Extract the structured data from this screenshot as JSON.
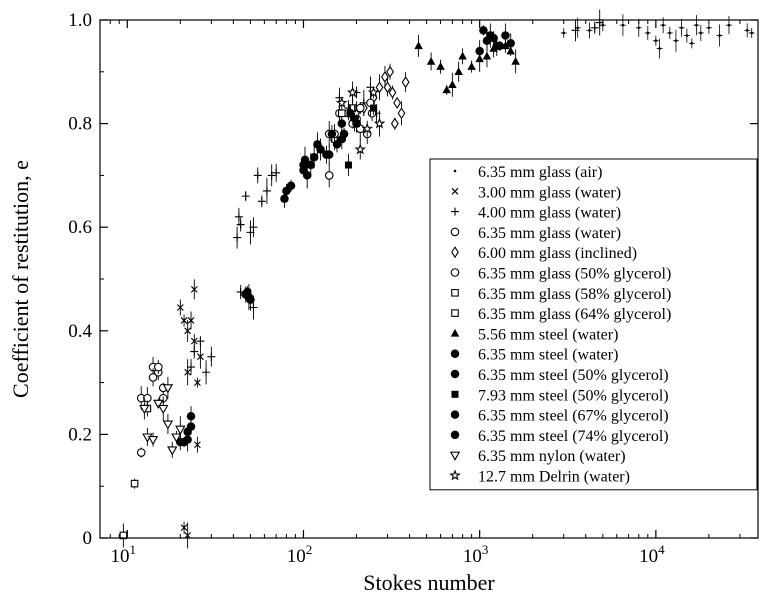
{
  "chart_data": {
    "type": "scatter",
    "title": "",
    "xlabel": "Stokes number",
    "ylabel": "Coefficient of restitution, e",
    "xscale": "log",
    "xlim": [
      7,
      38000
    ],
    "ylim": [
      0,
      1.0
    ],
    "yticks": [
      0,
      0.2,
      0.4,
      0.6,
      0.8,
      1.0
    ],
    "ytick_labels": [
      "0",
      "0.2",
      "0.4",
      "0.6",
      "0.8",
      "1.0"
    ],
    "xticks": [
      10,
      100,
      1000,
      10000
    ],
    "xtick_bases": [
      "10",
      "10",
      "10",
      "10"
    ],
    "xtick_exps": [
      "1",
      "2",
      "3",
      "4"
    ],
    "grid": false,
    "legend_position": "right",
    "series": [
      {
        "name": "6.35 mm glass (air)",
        "marker": "dot",
        "points": [
          [
            3000,
            0.975
          ],
          [
            3600,
            0.985
          ],
          [
            4200,
            0.98
          ],
          [
            5000,
            0.99
          ],
          [
            6500,
            0.99
          ],
          [
            8000,
            0.985
          ],
          [
            9000,
            0.975
          ],
          [
            10000,
            0.96
          ],
          [
            10500,
            0.945
          ],
          [
            11000,
            0.99
          ],
          [
            12000,
            0.975
          ],
          [
            13000,
            0.96
          ],
          [
            14000,
            0.985
          ],
          [
            15000,
            0.97
          ],
          [
            16000,
            0.955
          ],
          [
            17000,
            0.99
          ],
          [
            18000,
            0.975
          ],
          [
            20000,
            0.985
          ],
          [
            23000,
            0.97
          ],
          [
            26000,
            0.99
          ],
          [
            33000,
            0.98
          ],
          [
            35000,
            0.975
          ]
        ]
      },
      {
        "name": "3.00 mm glass (water)",
        "marker": "x",
        "points": [
          [
            20,
            0.445
          ],
          [
            21,
            0.42
          ],
          [
            22,
            0.32
          ],
          [
            22,
            0.4
          ],
          [
            23,
            0.42
          ],
          [
            24,
            0.38
          ],
          [
            25,
            0.3
          ],
          [
            26,
            0.35
          ],
          [
            24,
            0.48
          ],
          [
            25,
            0.18
          ],
          [
            21,
            0.02
          ],
          [
            22,
            0.005
          ]
        ]
      },
      {
        "name": "4.00 mm glass (water)",
        "marker": "plus",
        "points": [
          [
            42,
            0.58
          ],
          [
            43,
            0.62
          ],
          [
            44,
            0.605
          ],
          [
            47,
            0.66
          ],
          [
            50,
            0.59
          ],
          [
            52,
            0.6
          ],
          [
            55,
            0.7
          ],
          [
            58,
            0.65
          ],
          [
            62,
            0.67
          ],
          [
            66,
            0.7
          ],
          [
            70,
            0.705
          ],
          [
            44,
            0.475
          ],
          [
            48,
            0.465
          ],
          [
            52,
            0.445
          ],
          [
            160,
            0.85
          ],
          [
            180,
            0.83
          ],
          [
            200,
            0.86
          ],
          [
            220,
            0.84
          ],
          [
            240,
            0.87
          ],
          [
            260,
            0.82
          ],
          [
            24,
            0.36
          ],
          [
            26,
            0.38
          ],
          [
            28,
            0.32
          ],
          [
            30,
            0.35
          ],
          [
            23,
            0.33
          ],
          [
            4500,
            0.985
          ],
          [
            4800,
            0.995
          ],
          [
            3500,
            0.98
          ]
        ]
      },
      {
        "name": "6.35 mm glass (water)",
        "marker": "circle",
        "points": [
          [
            12,
            0.165
          ],
          [
            12,
            0.27
          ],
          [
            14,
            0.33
          ],
          [
            15,
            0.32
          ],
          [
            16,
            0.27
          ],
          [
            140,
            0.78
          ],
          [
            150,
            0.77
          ],
          [
            160,
            0.82
          ],
          [
            180,
            0.82
          ],
          [
            190,
            0.8
          ],
          [
            210,
            0.79
          ],
          [
            230,
            0.78
          ],
          [
            245,
            0.82
          ]
        ]
      },
      {
        "name": "6.00 mm glass (inclined)",
        "marker": "diamond",
        "points": [
          [
            220,
            0.83
          ],
          [
            250,
            0.85
          ],
          [
            270,
            0.87
          ],
          [
            290,
            0.89
          ],
          [
            300,
            0.87
          ],
          [
            320,
            0.86
          ],
          [
            340,
            0.84
          ],
          [
            360,
            0.82
          ],
          [
            380,
            0.88
          ],
          [
            310,
            0.9
          ],
          [
            330,
            0.8
          ]
        ]
      },
      {
        "name": "6.35 mm glass (50% glycerol)",
        "marker": "circle",
        "points": [
          [
            13,
            0.27
          ],
          [
            14,
            0.31
          ],
          [
            15,
            0.33
          ],
          [
            16,
            0.29
          ],
          [
            140,
            0.7
          ],
          [
            150,
            0.78
          ],
          [
            200,
            0.8
          ],
          [
            210,
            0.83
          ],
          [
            240,
            0.84
          ]
        ]
      },
      {
        "name": "6.35 mm glass (58% glycerol)",
        "marker": "square",
        "points": [
          [
            11,
            0.105
          ],
          [
            9.5,
            0.005
          ]
        ]
      },
      {
        "name": "6.35 mm glass (64% glycerol)",
        "marker": "square",
        "points": [
          [
            13,
            0.25
          ],
          [
            165,
            0.82
          ],
          [
            190,
            0.83
          ]
        ]
      },
      {
        "name": "5.56 mm steel (water)",
        "marker": "triangle",
        "points": [
          [
            450,
            0.95
          ],
          [
            530,
            0.92
          ],
          [
            600,
            0.91
          ],
          [
            650,
            0.865
          ],
          [
            700,
            0.875
          ],
          [
            760,
            0.9
          ],
          [
            800,
            0.93
          ],
          [
            900,
            0.91
          ],
          [
            1000,
            0.925
          ],
          [
            1100,
            0.93
          ],
          [
            1200,
            0.945
          ],
          [
            1400,
            0.95
          ],
          [
            1500,
            0.94
          ],
          [
            1600,
            0.92
          ]
        ]
      },
      {
        "name": "6.35 mm steel (water)",
        "marker": "dot-filled",
        "points": [
          [
            21,
            0.185
          ],
          [
            22,
            0.19
          ],
          [
            23,
            0.235
          ],
          [
            23,
            0.215
          ],
          [
            48,
            0.475
          ],
          [
            49,
            0.465
          ],
          [
            50,
            0.46
          ],
          [
            78,
            0.655
          ],
          [
            80,
            0.67
          ],
          [
            100,
            0.71
          ],
          [
            110,
            0.72
          ],
          [
            140,
            0.74
          ],
          [
            155,
            0.76
          ],
          [
            170,
            0.78
          ],
          [
            195,
            0.81
          ],
          [
            1000,
            0.94
          ],
          [
            1100,
            0.96
          ],
          [
            1200,
            0.965
          ],
          [
            1300,
            0.95
          ],
          [
            1400,
            0.97
          ],
          [
            1500,
            0.955
          ]
        ]
      },
      {
        "name": "6.35 mm steel (50% glycerol)",
        "marker": "dot-filled",
        "points": [
          [
            47,
            0.47
          ],
          [
            85,
            0.68
          ],
          [
            102,
            0.73
          ],
          [
            125,
            0.75
          ],
          [
            145,
            0.78
          ],
          [
            165,
            0.8
          ],
          [
            1050,
            0.98
          ],
          [
            1150,
            0.97
          ],
          [
            1250,
            0.95
          ]
        ]
      },
      {
        "name": "7.93 mm steel (50% glycerol)",
        "marker": "square-filled",
        "points": [
          [
            180,
            0.72
          ],
          [
            200,
            0.8
          ],
          [
            250,
            0.83
          ]
        ]
      },
      {
        "name": "6.35 mm steel (67% glycerol)",
        "marker": "dot-filled",
        "points": [
          [
            100,
            0.72
          ],
          [
            120,
            0.76
          ],
          [
            165,
            0.77
          ],
          [
            185,
            0.82
          ]
        ]
      },
      {
        "name": "6.35 mm steel (74% glycerol)",
        "marker": "dot-filled",
        "points": [
          [
            20,
            0.185
          ],
          [
            22,
            0.205
          ],
          [
            105,
            0.7
          ],
          [
            115,
            0.735
          ],
          [
            135,
            0.74
          ]
        ]
      },
      {
        "name": "6.35 mm nylon (water)",
        "marker": "triangle-down",
        "points": [
          [
            12.5,
            0.25
          ],
          [
            13,
            0.195
          ],
          [
            14,
            0.19
          ],
          [
            15,
            0.26
          ],
          [
            16,
            0.25
          ],
          [
            17,
            0.22
          ],
          [
            18,
            0.17
          ],
          [
            19,
            0.195
          ],
          [
            20,
            0.21
          ],
          [
            17,
            0.29
          ]
        ]
      },
      {
        "name": "12.7 mm Delrin (water)",
        "marker": "star",
        "points": [
          [
            165,
            0.84
          ],
          [
            200,
            0.82
          ],
          [
            210,
            0.75
          ],
          [
            230,
            0.79
          ],
          [
            250,
            0.86
          ],
          [
            270,
            0.8
          ],
          [
            190,
            0.86
          ]
        ]
      }
    ]
  }
}
